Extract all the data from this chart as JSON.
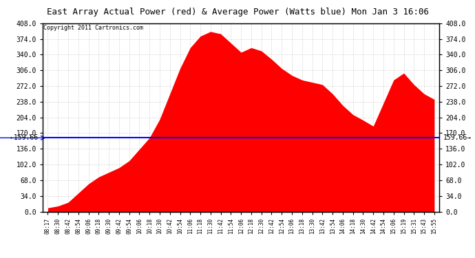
{
  "title": "East Array Actual Power (red) & Average Power (Watts blue) Mon Jan 3 16:06",
  "average_value": 159.66,
  "y_min": 0,
  "y_max": 408,
  "y_ticks": [
    0,
    34,
    68,
    102,
    136,
    170,
    204,
    238,
    272,
    306,
    340,
    374,
    408
  ],
  "background_color": "#ffffff",
  "plot_bg_color": "#ffffff",
  "fill_color": "#ff0000",
  "line_color": "#0000ff",
  "grid_color": "#cccccc",
  "copyright_text": "Copyright 2011 Cartronics.com",
  "x_labels": [
    "08:17",
    "08:30",
    "08:42",
    "08:54",
    "09:06",
    "09:18",
    "09:30",
    "09:42",
    "09:54",
    "10:06",
    "10:18",
    "10:30",
    "10:42",
    "10:54",
    "11:06",
    "11:18",
    "11:30",
    "11:42",
    "11:54",
    "12:06",
    "12:18",
    "12:30",
    "12:42",
    "12:54",
    "13:06",
    "13:18",
    "13:30",
    "13:42",
    "13:54",
    "14:06",
    "14:18",
    "14:30",
    "14:42",
    "14:54",
    "15:06",
    "15:19",
    "15:31",
    "15:43",
    "15:55"
  ]
}
